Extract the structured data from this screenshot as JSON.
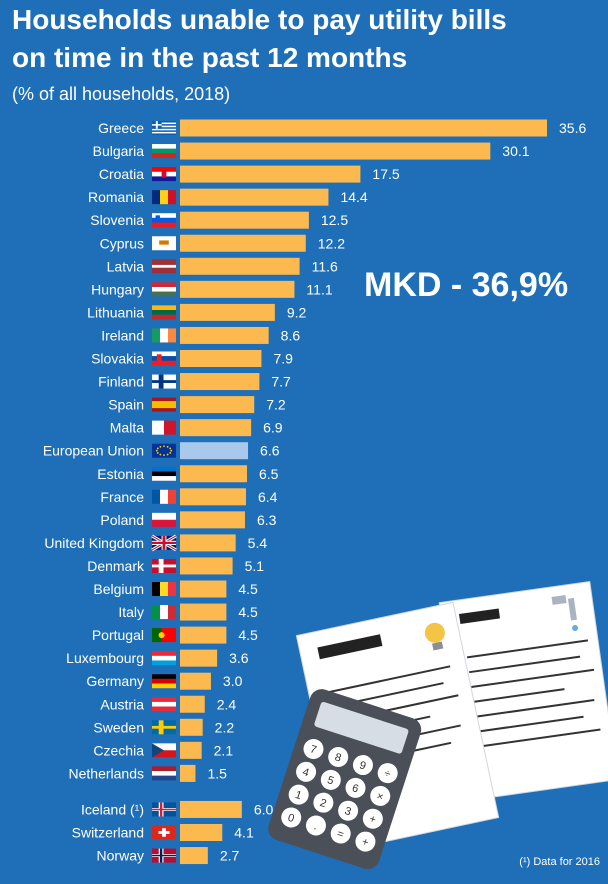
{
  "header": {
    "title_line1": "Households unable to pay utility bills",
    "title_line2": "on time in the past 12 months",
    "subtitle": "(% of all households, 2018)"
  },
  "callout": "MKD - 36,9%",
  "footnote": "(¹) Data for 2016",
  "colors": {
    "background": "#1f6fb8",
    "bar": "#fbb950",
    "bar_eu": "#a8c8ec",
    "text": "#ffffff"
  },
  "chart_data": {
    "type": "bar",
    "orientation": "horizontal",
    "title": "Households unable to pay utility bills on time in the past 12 months",
    "subtitle": "(% of all households, 2018)",
    "unit": "% of all households",
    "xlim": [
      0,
      35.6
    ],
    "categories": [
      "Greece",
      "Bulgaria",
      "Croatia",
      "Romania",
      "Slovenia",
      "Cyprus",
      "Latvia",
      "Hungary",
      "Lithuania",
      "Ireland",
      "Slovakia",
      "Finland",
      "Spain",
      "Malta",
      "European Union",
      "Estonia",
      "France",
      "Poland",
      "United Kingdom",
      "Denmark",
      "Belgium",
      "Italy",
      "Portugal",
      "Luxembourg",
      "Germany",
      "Austria",
      "Sweden",
      "Czechia",
      "Netherlands",
      "Iceland (¹)",
      "Switzerland",
      "Norway"
    ],
    "values": [
      35.6,
      30.1,
      17.5,
      14.4,
      12.5,
      12.2,
      11.6,
      11.1,
      9.2,
      8.6,
      7.9,
      7.7,
      7.2,
      6.9,
      6.6,
      6.5,
      6.4,
      6.3,
      5.4,
      5.1,
      4.5,
      4.5,
      4.5,
      3.6,
      3.0,
      2.4,
      2.2,
      2.1,
      1.5,
      6.0,
      4.1,
      2.7
    ],
    "value_labels": [
      "35.6",
      "30.1",
      "17.5",
      "14.4",
      "12.5",
      "12.2",
      "11.6",
      "11.1",
      "9.2",
      "8.6",
      "7.9",
      "7.7",
      "7.2",
      "6.9",
      "6.6",
      "6.5",
      "6.4",
      "6.3",
      "5.4",
      "5.1",
      "4.5",
      "4.5",
      "4.5",
      "3.6",
      "3.0",
      "2.4",
      "2.2",
      "2.1",
      "1.5",
      "6.0",
      "4.1",
      "2.7"
    ],
    "highlight": "European Union",
    "flags": [
      "greece-flag",
      "bulgaria-flag",
      "croatia-flag",
      "romania-flag",
      "slovenia-flag",
      "cyprus-flag",
      "latvia-flag",
      "hungary-flag",
      "lithuania-flag",
      "ireland-flag",
      "slovakia-flag",
      "finland-flag",
      "spain-flag",
      "malta-flag",
      "eu-flag",
      "estonia-flag",
      "france-flag",
      "poland-flag",
      "uk-flag",
      "denmark-flag",
      "belgium-flag",
      "italy-flag",
      "portugal-flag",
      "luxembourg-flag",
      "germany-flag",
      "austria-flag",
      "sweden-flag",
      "czechia-flag",
      "netherlands-flag",
      "iceland-flag",
      "switzerland-flag",
      "norway-flag"
    ]
  },
  "calculator_keys": [
    "7",
    "8",
    "9",
    "÷",
    "4",
    "5",
    "6",
    "×",
    "1",
    "2",
    "3",
    "+",
    "0",
    ".",
    "=",
    "+"
  ]
}
